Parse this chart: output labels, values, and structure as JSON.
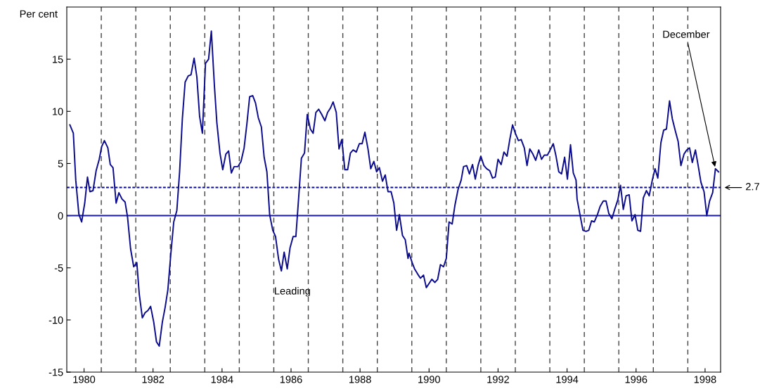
{
  "chart_data": {
    "type": "line",
    "ylabel": "Per cent",
    "series": [
      {
        "color": "#0a0a8c",
        "x": [
          1980.09,
          1980.19,
          1980.26,
          1980.35,
          1980.43,
          1980.52,
          1980.6,
          1980.67,
          1980.76,
          1980.85,
          1980.94,
          1981.01,
          1981.09,
          1981.19,
          1981.26,
          1981.34,
          1981.43,
          1981.51,
          1981.6,
          1981.69,
          1981.76,
          1981.85,
          1981.94,
          1982.03,
          1982.1,
          1982.19,
          1982.27,
          1982.35,
          1982.43,
          1982.52,
          1982.6,
          1982.68,
          1982.77,
          1982.85,
          1982.93,
          1983.02,
          1983.1,
          1983.19,
          1983.27,
          1983.35,
          1983.43,
          1983.52,
          1983.6,
          1983.69,
          1983.77,
          1983.85,
          1983.93,
          1984.02,
          1984.11,
          1984.19,
          1984.28,
          1984.35,
          1984.44,
          1984.52,
          1984.61,
          1984.69,
          1984.77,
          1984.85,
          1984.96,
          1985.05,
          1985.14,
          1985.22,
          1985.3,
          1985.39,
          1985.47,
          1985.55,
          1985.64,
          1985.72,
          1985.8,
          1985.88,
          1985.97,
          1986.05,
          1986.14,
          1986.22,
          1986.3,
          1986.39,
          1986.47,
          1986.56,
          1986.64,
          1986.72,
          1986.8,
          1986.89,
          1986.97,
          1987.06,
          1987.14,
          1987.22,
          1987.3,
          1987.39,
          1987.48,
          1987.56,
          1987.64,
          1987.72,
          1987.81,
          1987.89,
          1987.97,
          1988.06,
          1988.14,
          1988.22,
          1988.3,
          1988.39,
          1988.48,
          1988.56,
          1988.64,
          1988.73,
          1988.81,
          1988.9,
          1988.98,
          1989.06,
          1989.15,
          1989.23,
          1989.31,
          1989.4,
          1989.48,
          1989.56,
          1989.64,
          1989.73,
          1989.81,
          1989.89,
          1989.92,
          1990.01,
          1990.08,
          1990.17,
          1990.25,
          1990.34,
          1990.42,
          1990.5,
          1990.58,
          1990.67,
          1990.75,
          1990.83,
          1990.92,
          1991.0,
          1991.08,
          1991.17,
          1991.25,
          1991.34,
          1991.43,
          1991.5,
          1991.59,
          1991.67,
          1991.76,
          1991.84,
          1991.92,
          1992.0,
          1992.09,
          1992.17,
          1992.26,
          1992.34,
          1992.42,
          1992.5,
          1992.59,
          1992.67,
          1992.76,
          1992.84,
          1992.92,
          1993.0,
          1993.09,
          1993.17,
          1993.26,
          1993.34,
          1993.42,
          1993.51,
          1993.59,
          1993.68,
          1993.76,
          1993.84,
          1993.93,
          1994.01,
          1994.1,
          1994.18,
          1994.26,
          1994.34,
          1994.43,
          1994.51,
          1994.6,
          1994.68,
          1994.76,
          1994.79,
          1994.88,
          1994.96,
          1995.05,
          1995.13,
          1995.21,
          1995.29,
          1995.38,
          1995.46,
          1995.55,
          1995.63,
          1995.71,
          1995.8,
          1995.88,
          1995.97,
          1996.05,
          1996.13,
          1996.21,
          1996.3,
          1996.38,
          1996.47,
          1996.55,
          1996.63,
          1996.71,
          1996.8,
          1996.88,
          1996.97,
          1997.05,
          1997.13,
          1997.22,
          1997.3,
          1997.38,
          1997.47,
          1997.55,
          1997.64,
          1997.72,
          1997.8,
          1997.89,
          1997.97,
          1998.05,
          1998.13,
          1998.22,
          1998.3,
          1998.38,
          1998.47,
          1998.55,
          1998.63,
          1998.72,
          1998.8,
          1998.89
        ],
        "values": [
          8.7,
          7.9,
          3.4,
          0.15,
          -0.6,
          1.2,
          3.7,
          2.3,
          2.4,
          4.3,
          5.4,
          6.6,
          7.2,
          6.5,
          4.9,
          4.6,
          1.2,
          2.2,
          1.6,
          1.3,
          -0.1,
          -3.2,
          -4.9,
          -4.5,
          -7.5,
          -9.8,
          -9.3,
          -9.1,
          -8.7,
          -10.2,
          -12.1,
          -12.5,
          -10.2,
          -8.8,
          -7.1,
          -3.5,
          -0.6,
          0.5,
          4.2,
          9.3,
          12.8,
          13.4,
          13.5,
          15.1,
          13.3,
          9.5,
          7.9,
          14.6,
          15.0,
          17.7,
          12.4,
          8.9,
          6.0,
          4.4,
          5.9,
          6.2,
          4.1,
          4.7,
          4.7,
          5.2,
          6.5,
          8.8,
          11.4,
          11.5,
          10.8,
          9.4,
          8.5,
          5.6,
          4.2,
          0.1,
          -1.4,
          -2.0,
          -4.2,
          -5.3,
          -3.5,
          -5.1,
          -3.1,
          -2.0,
          -2.0,
          1.7,
          5.5,
          6.0,
          9.7,
          8.3,
          7.9,
          9.9,
          10.2,
          9.7,
          9.1,
          9.9,
          10.3,
          10.9,
          9.9,
          6.4,
          7.3,
          4.4,
          4.4,
          6.0,
          6.3,
          6.1,
          6.9,
          6.9,
          8.0,
          6.4,
          4.5,
          5.2,
          4.2,
          4.6,
          3.3,
          3.9,
          2.3,
          2.3,
          1.2,
          -1.4,
          0.1,
          -1.9,
          -2.3,
          -4.1,
          -3.6,
          -4.5,
          -5.1,
          -5.6,
          -6.0,
          -5.7,
          -6.9,
          -6.5,
          -6.1,
          -6.4,
          -6.1,
          -4.7,
          -4.9,
          -4.1,
          -0.6,
          -0.8,
          1.0,
          2.5,
          3.4,
          4.7,
          4.8,
          4.0,
          4.9,
          3.5,
          4.8,
          5.7,
          4.8,
          4.5,
          4.3,
          3.6,
          3.7,
          5.4,
          4.9,
          6.1,
          5.7,
          7.3,
          8.7,
          7.9,
          7.2,
          7.3,
          6.5,
          4.8,
          6.4,
          5.9,
          5.3,
          6.3,
          5.4,
          5.8,
          5.8,
          6.3,
          6.9,
          5.7,
          4.2,
          4.0,
          5.6,
          3.5,
          6.8,
          4.1,
          3.4,
          1.6,
          0.0,
          -1.4,
          -1.5,
          -1.4,
          -0.5,
          -0.6,
          0.1,
          0.9,
          1.4,
          1.4,
          0.2,
          -0.3,
          0.6,
          1.5,
          2.9,
          0.6,
          1.9,
          2.0,
          -0.5,
          0.1,
          -1.4,
          -1.5,
          1.7,
          2.4,
          1.9,
          3.4,
          4.5,
          3.6,
          7.0,
          8.2,
          8.3,
          11.0,
          9.3,
          8.1,
          7.1,
          4.8,
          5.9,
          6.3,
          6.5,
          5.1,
          6.3,
          4.8,
          3.2,
          2.3,
          0.0,
          1.4,
          2.2,
          4.5,
          4.2
        ]
      }
    ],
    "xlim": [
      1980,
      1998.95
    ],
    "ylim": [
      -15,
      20
    ],
    "xticks": [
      {
        "value": 1980.5,
        "label": "1980"
      },
      {
        "value": 1982.5,
        "label": "1982"
      },
      {
        "value": 1984.5,
        "label": "1984"
      },
      {
        "value": 1986.5,
        "label": "1986"
      },
      {
        "value": 1988.5,
        "label": "1988"
      },
      {
        "value": 1990.5,
        "label": "1990"
      },
      {
        "value": 1992.5,
        "label": "1992"
      },
      {
        "value": 1994.5,
        "label": "1994"
      },
      {
        "value": 1996.5,
        "label": "1996"
      },
      {
        "value": 1998.5,
        "label": "1998"
      }
    ],
    "yticks": [
      -15,
      -10,
      -5,
      0,
      5,
      10,
      15
    ],
    "ref_lines": [
      {
        "axis": "y",
        "value": 0,
        "color": "#1a1aa0",
        "line_style": "solid"
      },
      {
        "axis": "y",
        "value": 2.7,
        "label": "2.7",
        "color": "#0a0a8c",
        "line_style": "dotted"
      },
      {
        "axis": "x",
        "value": 1981,
        "color": "#444444",
        "line_style": "dashed"
      },
      {
        "axis": "x",
        "value": 1982,
        "color": "#444444",
        "line_style": "dashed"
      },
      {
        "axis": "x",
        "value": 1983,
        "color": "#444444",
        "line_style": "dashed"
      },
      {
        "axis": "x",
        "value": 1984,
        "color": "#444444",
        "line_style": "dashed"
      },
      {
        "axis": "x",
        "value": 1985,
        "color": "#444444",
        "line_style": "dashed"
      },
      {
        "axis": "x",
        "value": 1986,
        "color": "#444444",
        "line_style": "dashed"
      },
      {
        "axis": "x",
        "value": 1987,
        "color": "#444444",
        "line_style": "dashed"
      },
      {
        "axis": "x",
        "value": 1988,
        "color": "#444444",
        "line_style": "dashed"
      },
      {
        "axis": "x",
        "value": 1989,
        "color": "#444444",
        "line_style": "dashed"
      },
      {
        "axis": "x",
        "value": 1990,
        "color": "#444444",
        "line_style": "dashed"
      },
      {
        "axis": "x",
        "value": 1991,
        "color": "#444444",
        "line_style": "dashed"
      },
      {
        "axis": "x",
        "value": 1992,
        "color": "#444444",
        "line_style": "dashed"
      },
      {
        "axis": "x",
        "value": 1993,
        "color": "#444444",
        "line_style": "dashed"
      },
      {
        "axis": "x",
        "value": 1994,
        "color": "#444444",
        "line_style": "dashed"
      },
      {
        "axis": "x",
        "value": 1995,
        "color": "#444444",
        "line_style": "dashed"
      },
      {
        "axis": "x",
        "value": 1996,
        "color": "#444444",
        "line_style": "dashed"
      },
      {
        "axis": "x",
        "value": 1997,
        "color": "#444444",
        "line_style": "dashed"
      },
      {
        "axis": "x",
        "value": 1998,
        "color": "#444444",
        "line_style": "dashed"
      }
    ],
    "annotations": [
      {
        "text": "December",
        "x": 1998.8,
        "y": 4.5
      },
      "Leading"
    ],
    "line_style": "solid",
    "grid": false,
    "legend": false
  }
}
